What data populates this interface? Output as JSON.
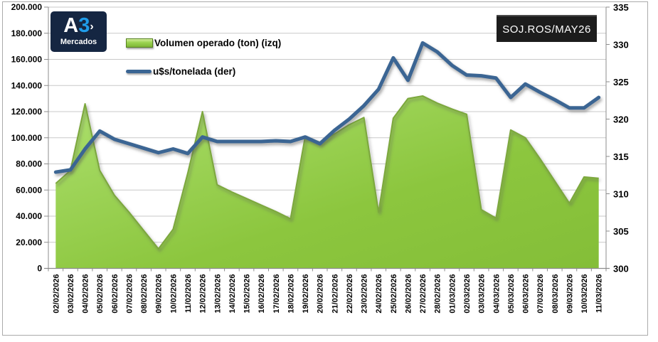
{
  "logo": {
    "letter_a": "A",
    "digit_3": "3",
    "arrow": "›",
    "subtitle": "Mercados"
  },
  "ticker_label": "SOJ.ROS/MAY26",
  "colors": {
    "area_green": "#8CC63E",
    "area_green_light": "#ADE06F",
    "area_edge": "#7CA73E",
    "line_blue": "#3A6593",
    "logo_bg": "#152642",
    "logo_accent": "#1F9CEA",
    "ticker_bg": "#1C1C1C",
    "grid": "#C9C9C9",
    "axis": "#8C8C8C"
  },
  "chart_data": {
    "type": "combo",
    "title": "",
    "legend_position": "top-left-inside",
    "grid": true,
    "categories": [
      "02/02/2026",
      "03/02/2026",
      "04/02/2026",
      "05/02/2026",
      "06/02/2026",
      "07/02/2026",
      "08/02/2026",
      "09/02/2026",
      "10/02/2026",
      "11/02/2026",
      "12/02/2026",
      "13/02/2026",
      "14/02/2026",
      "15/02/2026",
      "16/02/2026",
      "17/02/2026",
      "18/02/2026",
      "19/02/2026",
      "20/02/2026",
      "21/02/2026",
      "22/02/2026",
      "23/02/2026",
      "24/02/2026",
      "25/02/2026",
      "26/02/2026",
      "27/02/2026",
      "28/02/2026",
      "01/03/2026",
      "02/03/2026",
      "03/03/2026",
      "04/03/2026",
      "05/03/2026",
      "06/03/2026",
      "07/03/2026",
      "08/03/2026",
      "09/03/2026",
      "10/03/2026",
      "11/03/2026"
    ],
    "series": [
      {
        "name": "Volumen operado (ton) (izq)",
        "type": "area",
        "axis": "left",
        "color": "#8CC63E",
        "values": [
          65000,
          75000,
          126000,
          75000,
          56000,
          43000,
          29000,
          15000,
          30000,
          73000,
          120000,
          64000,
          58500,
          53500,
          48500,
          43500,
          38000,
          101000,
          96500,
          103000,
          110000,
          115500,
          43000,
          115000,
          130000,
          132000,
          126500,
          122000,
          118000,
          45000,
          38500,
          106000,
          100000,
          84000,
          67000,
          50000,
          70000,
          69000
        ]
      },
      {
        "name": "u$s/tonelada (der)",
        "type": "line",
        "axis": "right",
        "color": "#3A6593",
        "values": [
          312.9,
          313.2,
          316.0,
          318.4,
          317.3,
          316.7,
          316.1,
          315.5,
          316.0,
          315.4,
          317.6,
          317.0,
          317.0,
          317.0,
          317.0,
          317.1,
          317.0,
          317.6,
          316.7,
          318.5,
          320.0,
          321.8,
          324.0,
          328.2,
          325.2,
          330.2,
          329.0,
          327.2,
          325.9,
          325.8,
          325.5,
          322.9,
          324.7,
          323.6,
          322.6,
          321.5,
          321.5,
          322.9
        ]
      }
    ],
    "left_axis": {
      "min": 0,
      "max": 200000,
      "step": 20000,
      "tick_labels": [
        "200.000",
        "180.000",
        "160.000",
        "140.000",
        "120.000",
        "100.000",
        "80.000",
        "60.000",
        "40.000",
        "20.000",
        "0"
      ]
    },
    "right_axis": {
      "min": 300,
      "max": 335,
      "step": 5,
      "tick_labels": [
        "335",
        "330",
        "325",
        "320",
        "315",
        "310",
        "305",
        "300"
      ]
    },
    "x_axis": {
      "label_rotation": -90
    }
  }
}
